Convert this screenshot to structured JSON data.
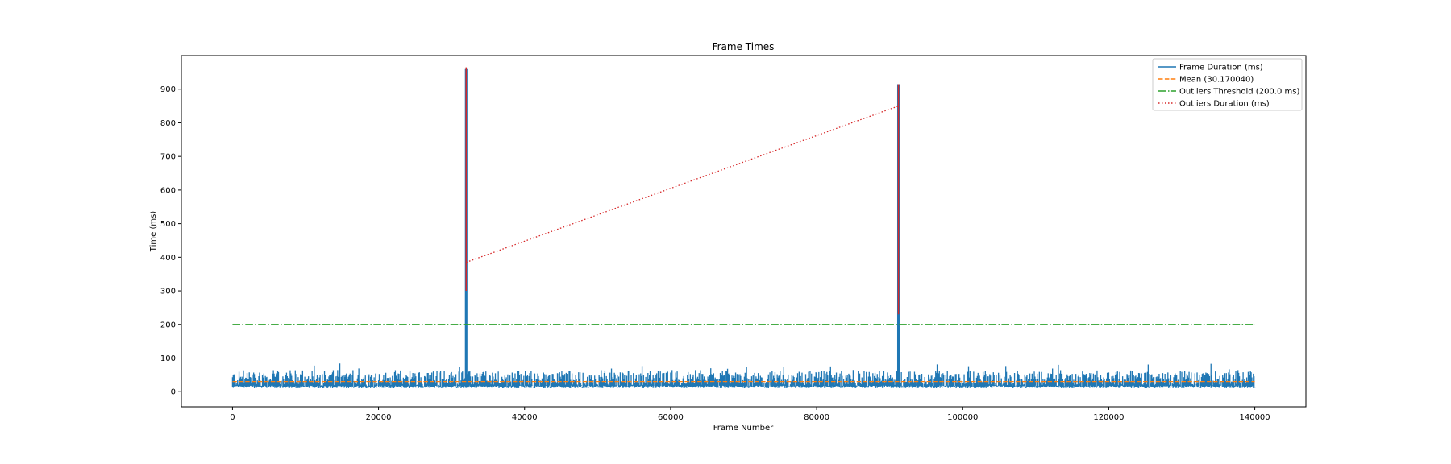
{
  "chart_data": {
    "type": "line",
    "title": "Frame Times",
    "xlabel": "Frame Number",
    "ylabel": "Time (ms)",
    "xlim": [
      -7000,
      147000
    ],
    "ylim": [
      -45,
      1000
    ],
    "x_ticks": [
      0,
      20000,
      40000,
      60000,
      80000,
      100000,
      120000,
      140000
    ],
    "y_ticks": [
      0,
      100,
      200,
      300,
      400,
      500,
      600,
      700,
      800,
      900
    ],
    "grid": false,
    "legend_position": "top-right",
    "frame_count": 140000,
    "series": [
      {
        "name": "Frame Duration (ms)",
        "style": "solid",
        "color": "#1f77b4",
        "typical_range": [
          10,
          55
        ],
        "occasional_max": 85,
        "spikes": [
          {
            "x": 32000,
            "y": 960
          },
          {
            "x": 91200,
            "y": 915
          }
        ]
      },
      {
        "name": "Mean (30.170040)",
        "style": "dashed",
        "color": "#ff7f0e",
        "x": [
          0,
          140000
        ],
        "y": [
          30.17004,
          30.17004
        ]
      },
      {
        "name": "Outliers Threshold (200.0 ms)",
        "style": "dashdot",
        "color": "#2ca02c",
        "x": [
          0,
          140000
        ],
        "y": [
          200,
          200
        ]
      },
      {
        "name": "Outliers Duration (ms)",
        "style": "dotted",
        "color": "#d62728",
        "x": [
          32000,
          91200
        ],
        "y": [
          385,
          850
        ],
        "spike_max": [
          965,
          915
        ]
      }
    ]
  }
}
